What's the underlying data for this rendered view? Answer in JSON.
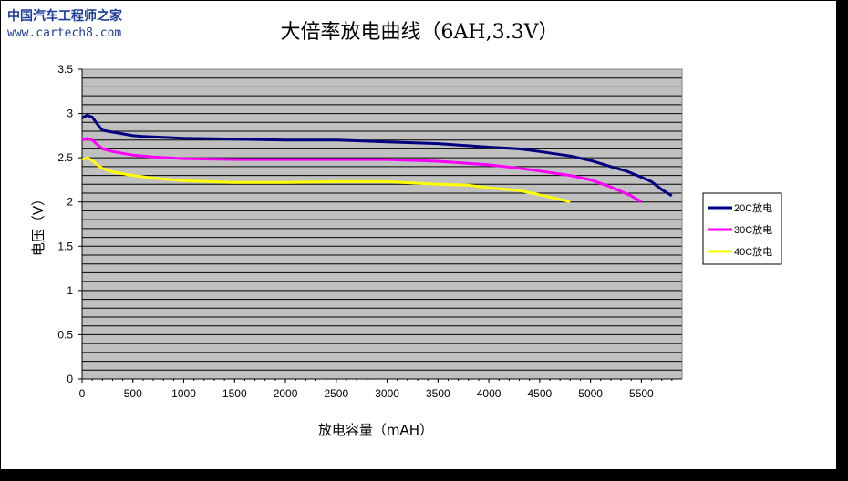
{
  "watermark": {
    "site_name": "中国汽车工程师之家",
    "url": "www.cartech8.com"
  },
  "colors": {
    "plot_background": "#c0c0c0",
    "grid": "#000000",
    "series_20C": "#000080",
    "series_30C": "#ff00ff",
    "series_40C": "#ffff00"
  },
  "chart_data": {
    "type": "line",
    "title": "大倍率放电曲线（6AH,3.3V）",
    "xlabel": "放电容量（mAH）",
    "ylabel": "电压（V）",
    "xlim": [
      0,
      5900
    ],
    "ylim": [
      0,
      3.5
    ],
    "x_ticks": [
      "0",
      "500",
      "1000",
      "1500",
      "2000",
      "2500",
      "3000",
      "3500",
      "4000",
      "4500",
      "5000",
      "5500"
    ],
    "y_ticks": [
      "0",
      "0.5",
      "1",
      "1.5",
      "2",
      "2.5",
      "3",
      "3.5"
    ],
    "grid": true,
    "legend_position": "right",
    "series": [
      {
        "name": "20C放电",
        "color": "#000080",
        "points": [
          [
            0,
            2.95
          ],
          [
            50,
            2.98
          ],
          [
            100,
            2.96
          ],
          [
            150,
            2.88
          ],
          [
            200,
            2.81
          ],
          [
            300,
            2.79
          ],
          [
            400,
            2.77
          ],
          [
            500,
            2.75
          ],
          [
            600,
            2.74
          ],
          [
            800,
            2.73
          ],
          [
            1000,
            2.72
          ],
          [
            1500,
            2.71
          ],
          [
            2000,
            2.7
          ],
          [
            2500,
            2.7
          ],
          [
            3000,
            2.68
          ],
          [
            3500,
            2.66
          ],
          [
            4000,
            2.62
          ],
          [
            4300,
            2.6
          ],
          [
            4500,
            2.57
          ],
          [
            4800,
            2.52
          ],
          [
            5000,
            2.47
          ],
          [
            5200,
            2.4
          ],
          [
            5350,
            2.35
          ],
          [
            5500,
            2.28
          ],
          [
            5600,
            2.23
          ],
          [
            5700,
            2.14
          ],
          [
            5800,
            2.07
          ]
        ]
      },
      {
        "name": "30C放电",
        "color": "#ff00ff",
        "points": [
          [
            0,
            2.7
          ],
          [
            50,
            2.72
          ],
          [
            100,
            2.7
          ],
          [
            150,
            2.65
          ],
          [
            200,
            2.6
          ],
          [
            300,
            2.57
          ],
          [
            400,
            2.55
          ],
          [
            500,
            2.53
          ],
          [
            700,
            2.51
          ],
          [
            1000,
            2.49
          ],
          [
            1500,
            2.48
          ],
          [
            2000,
            2.48
          ],
          [
            2500,
            2.48
          ],
          [
            3000,
            2.48
          ],
          [
            3500,
            2.46
          ],
          [
            4000,
            2.42
          ],
          [
            4300,
            2.38
          ],
          [
            4500,
            2.35
          ],
          [
            4800,
            2.3
          ],
          [
            5000,
            2.25
          ],
          [
            5200,
            2.17
          ],
          [
            5400,
            2.07
          ],
          [
            5500,
            2.0
          ]
        ]
      },
      {
        "name": "40C放电",
        "color": "#ffff00",
        "points": [
          [
            0,
            2.48
          ],
          [
            50,
            2.5
          ],
          [
            100,
            2.47
          ],
          [
            150,
            2.42
          ],
          [
            200,
            2.38
          ],
          [
            300,
            2.34
          ],
          [
            400,
            2.32
          ],
          [
            500,
            2.3
          ],
          [
            700,
            2.27
          ],
          [
            1000,
            2.24
          ],
          [
            1500,
            2.22
          ],
          [
            2000,
            2.22
          ],
          [
            2500,
            2.23
          ],
          [
            3000,
            2.23
          ],
          [
            3500,
            2.2
          ],
          [
            3800,
            2.19
          ],
          [
            4000,
            2.16
          ],
          [
            4300,
            2.13
          ],
          [
            4500,
            2.08
          ],
          [
            4700,
            2.03
          ],
          [
            4800,
            2.0
          ]
        ]
      }
    ]
  }
}
